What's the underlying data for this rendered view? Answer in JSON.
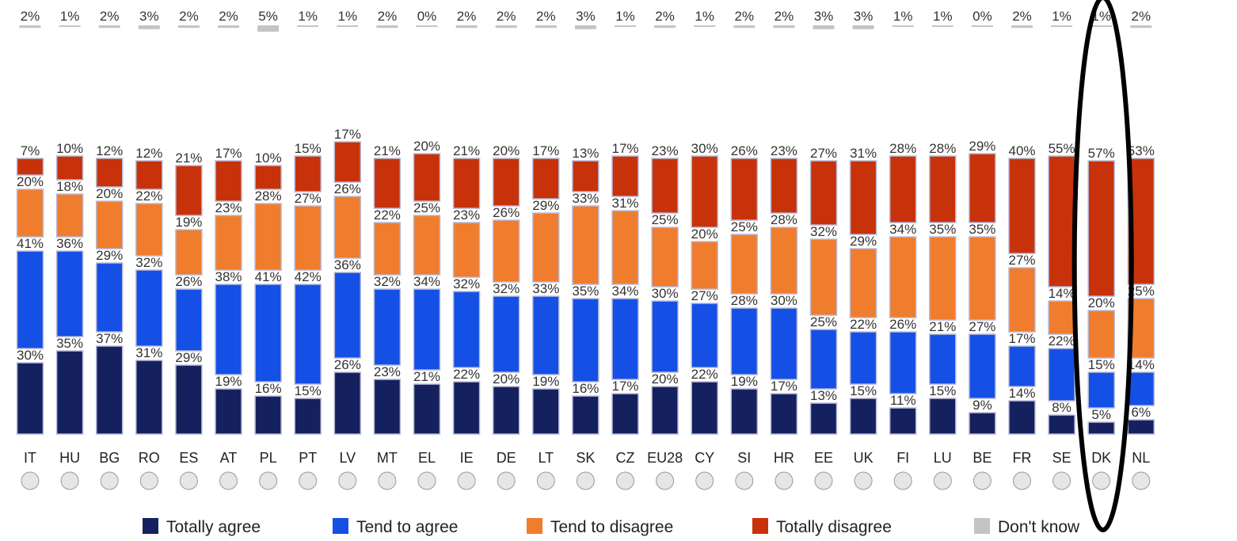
{
  "chart_data": {
    "type": "bar",
    "stacked": true,
    "categories": [
      "IT",
      "HU",
      "BG",
      "RO",
      "ES",
      "AT",
      "PL",
      "PT",
      "LV",
      "MT",
      "EL",
      "IE",
      "DE",
      "LT",
      "SK",
      "CZ",
      "EU28",
      "CY",
      "SI",
      "HR",
      "EE",
      "UK",
      "FI",
      "LU",
      "BE",
      "FR",
      "SE",
      "DK",
      "NL"
    ],
    "series": [
      {
        "name": "Totally agree",
        "color": "#15215e",
        "values": [
          30,
          35,
          37,
          31,
          29,
          19,
          16,
          15,
          26,
          23,
          21,
          22,
          20,
          19,
          16,
          17,
          20,
          22,
          19,
          17,
          13,
          15,
          11,
          15,
          9,
          14,
          8,
          5,
          6
        ]
      },
      {
        "name": "Tend to agree",
        "color": "#1450e6",
        "values": [
          41,
          36,
          29,
          32,
          26,
          38,
          41,
          42,
          36,
          32,
          34,
          32,
          32,
          33,
          35,
          34,
          30,
          27,
          28,
          30,
          25,
          22,
          26,
          21,
          27,
          17,
          22,
          15,
          14
        ]
      },
      {
        "name": "Tend to disagree",
        "color": "#f07d2d",
        "values": [
          20,
          18,
          20,
          22,
          19,
          23,
          28,
          27,
          26,
          22,
          25,
          23,
          26,
          29,
          33,
          31,
          25,
          20,
          25,
          28,
          32,
          29,
          34,
          35,
          35,
          27,
          14,
          20,
          25
        ]
      },
      {
        "name": "Totally disagree",
        "color": "#c8320a",
        "values": [
          7,
          10,
          12,
          12,
          21,
          17,
          10,
          15,
          17,
          21,
          20,
          21,
          20,
          17,
          13,
          17,
          23,
          30,
          26,
          23,
          27,
          31,
          28,
          28,
          29,
          40,
          55,
          57,
          53
        ]
      },
      {
        "name": "Don't know",
        "color": "#c4c4c4",
        "values": [
          2,
          1,
          2,
          3,
          2,
          2,
          5,
          1,
          1,
          2,
          0,
          2,
          2,
          2,
          3,
          1,
          2,
          1,
          2,
          2,
          3,
          3,
          1,
          1,
          0,
          2,
          1,
          1,
          2
        ]
      }
    ],
    "value_labels": {
      "Totally agree": [
        "30%",
        "35%",
        "37%",
        "31%",
        "29%",
        "19%",
        "16%",
        "15%",
        "26%",
        "23%",
        "21%",
        "22%",
        "20%",
        "19%",
        "16%",
        "17%",
        "20%",
        "22%",
        "19%",
        "17%",
        "13%",
        "15%",
        "11%",
        "15%",
        "9%",
        "14%",
        "8%",
        "5%",
        "6%"
      ],
      "Tend to agree": [
        "41%",
        "36%",
        "29%",
        "32%",
        "26%",
        "38%",
        "41%",
        "42%",
        "36%",
        "32%",
        "34%",
        "32%",
        "32%",
        "33%",
        "35%",
        "34%",
        "30%",
        "27%",
        "28%",
        "30%",
        "25%",
        "22%",
        "26%",
        "21%",
        "27%",
        "17%",
        "22%",
        "15%",
        "14%"
      ],
      "Tend to disagree": [
        "20%",
        "18%",
        "20%",
        "22%",
        "19%",
        "23%",
        "28%",
        "27%",
        "26%",
        "22%",
        "25%",
        "23%",
        "26%",
        "29%",
        "33%",
        "31%",
        "25%",
        "20%",
        "25%",
        "28%",
        "32%",
        "29%",
        "34%",
        "35%",
        "35%",
        "27%",
        "14%",
        "20%",
        "25%"
      ],
      "Totally disagree": [
        "7%",
        "10%",
        "12%",
        "12%",
        "21%",
        "17%",
        "10%",
        "15%",
        "17%",
        "21%",
        "20%",
        "21%",
        "20%",
        "17%",
        "13%",
        "17%",
        "23%",
        "30%",
        "26%",
        "23%",
        "27%",
        "31%",
        "28%",
        "28%",
        "29%",
        "40%",
        "55%",
        "57%",
        "53%"
      ],
      "Don't know": [
        "2%",
        "1%",
        "2%",
        "3%",
        "2%",
        "2%",
        "5%",
        "1%",
        "1%",
        "2%",
        "0%",
        "2%",
        "2%",
        "2%",
        "3%",
        "1%",
        "2%",
        "1%",
        "2%",
        "2%",
        "3%",
        "3%",
        "1%",
        "1%",
        "0%",
        "2%",
        "1%",
        "1%",
        "2%"
      ]
    },
    "legend_position": "bottom",
    "highlighted_category": "DK",
    "highlight_color": "#000000",
    "grid": false
  }
}
